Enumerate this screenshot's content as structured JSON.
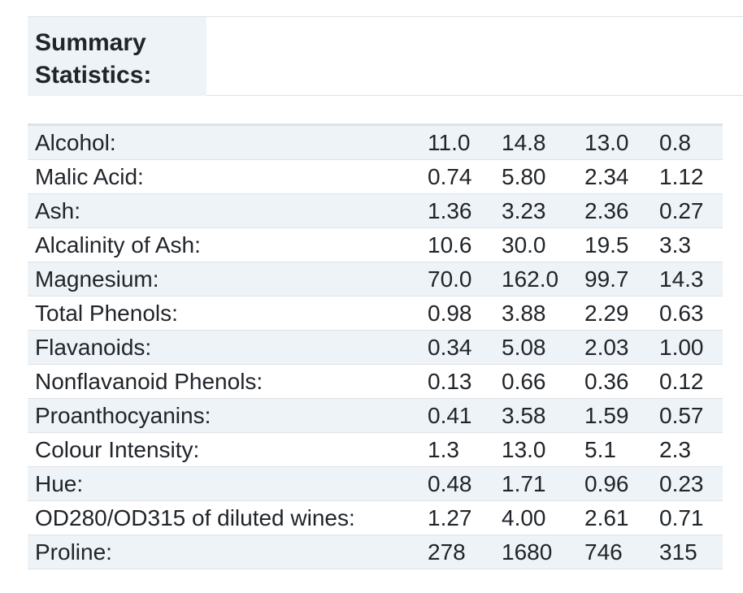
{
  "header": {
    "title_line1": "Summary",
    "title_line2": "Statistics:"
  },
  "rows": [
    {
      "label": "Alcohol:",
      "values": [
        "11.0",
        "14.8",
        "13.0",
        "0.8"
      ]
    },
    {
      "label": "Malic Acid:",
      "values": [
        "0.74",
        "5.80",
        "2.34",
        "1.12"
      ]
    },
    {
      "label": "Ash:",
      "values": [
        "1.36",
        "3.23",
        "2.36",
        "0.27"
      ]
    },
    {
      "label": "Alcalinity of Ash:",
      "values": [
        "10.6",
        "30.0",
        "19.5",
        "3.3"
      ]
    },
    {
      "label": "Magnesium:",
      "values": [
        "70.0",
        "162.0",
        "99.7",
        "14.3"
      ]
    },
    {
      "label": "Total Phenols:",
      "values": [
        "0.98",
        "3.88",
        "2.29",
        "0.63"
      ]
    },
    {
      "label": "Flavanoids:",
      "values": [
        "0.34",
        "5.08",
        "2.03",
        "1.00"
      ]
    },
    {
      "label": "Nonflavanoid Phenols:",
      "values": [
        "0.13",
        "0.66",
        "0.36",
        "0.12"
      ]
    },
    {
      "label": "Proanthocyanins:",
      "values": [
        "0.41",
        "3.58",
        "1.59",
        "0.57"
      ]
    },
    {
      "label": "Colour Intensity:",
      "values": [
        "1.3",
        "13.0",
        "5.1",
        "2.3"
      ]
    },
    {
      "label": "Hue:",
      "values": [
        "0.48",
        "1.71",
        "0.96",
        "0.23"
      ]
    },
    {
      "label": "OD280/OD315 of diluted wines:",
      "values": [
        "1.27",
        "4.00",
        "2.61",
        "0.71"
      ]
    },
    {
      "label": "Proline:",
      "values": [
        "278",
        "1680",
        "746",
        "315"
      ]
    }
  ]
}
